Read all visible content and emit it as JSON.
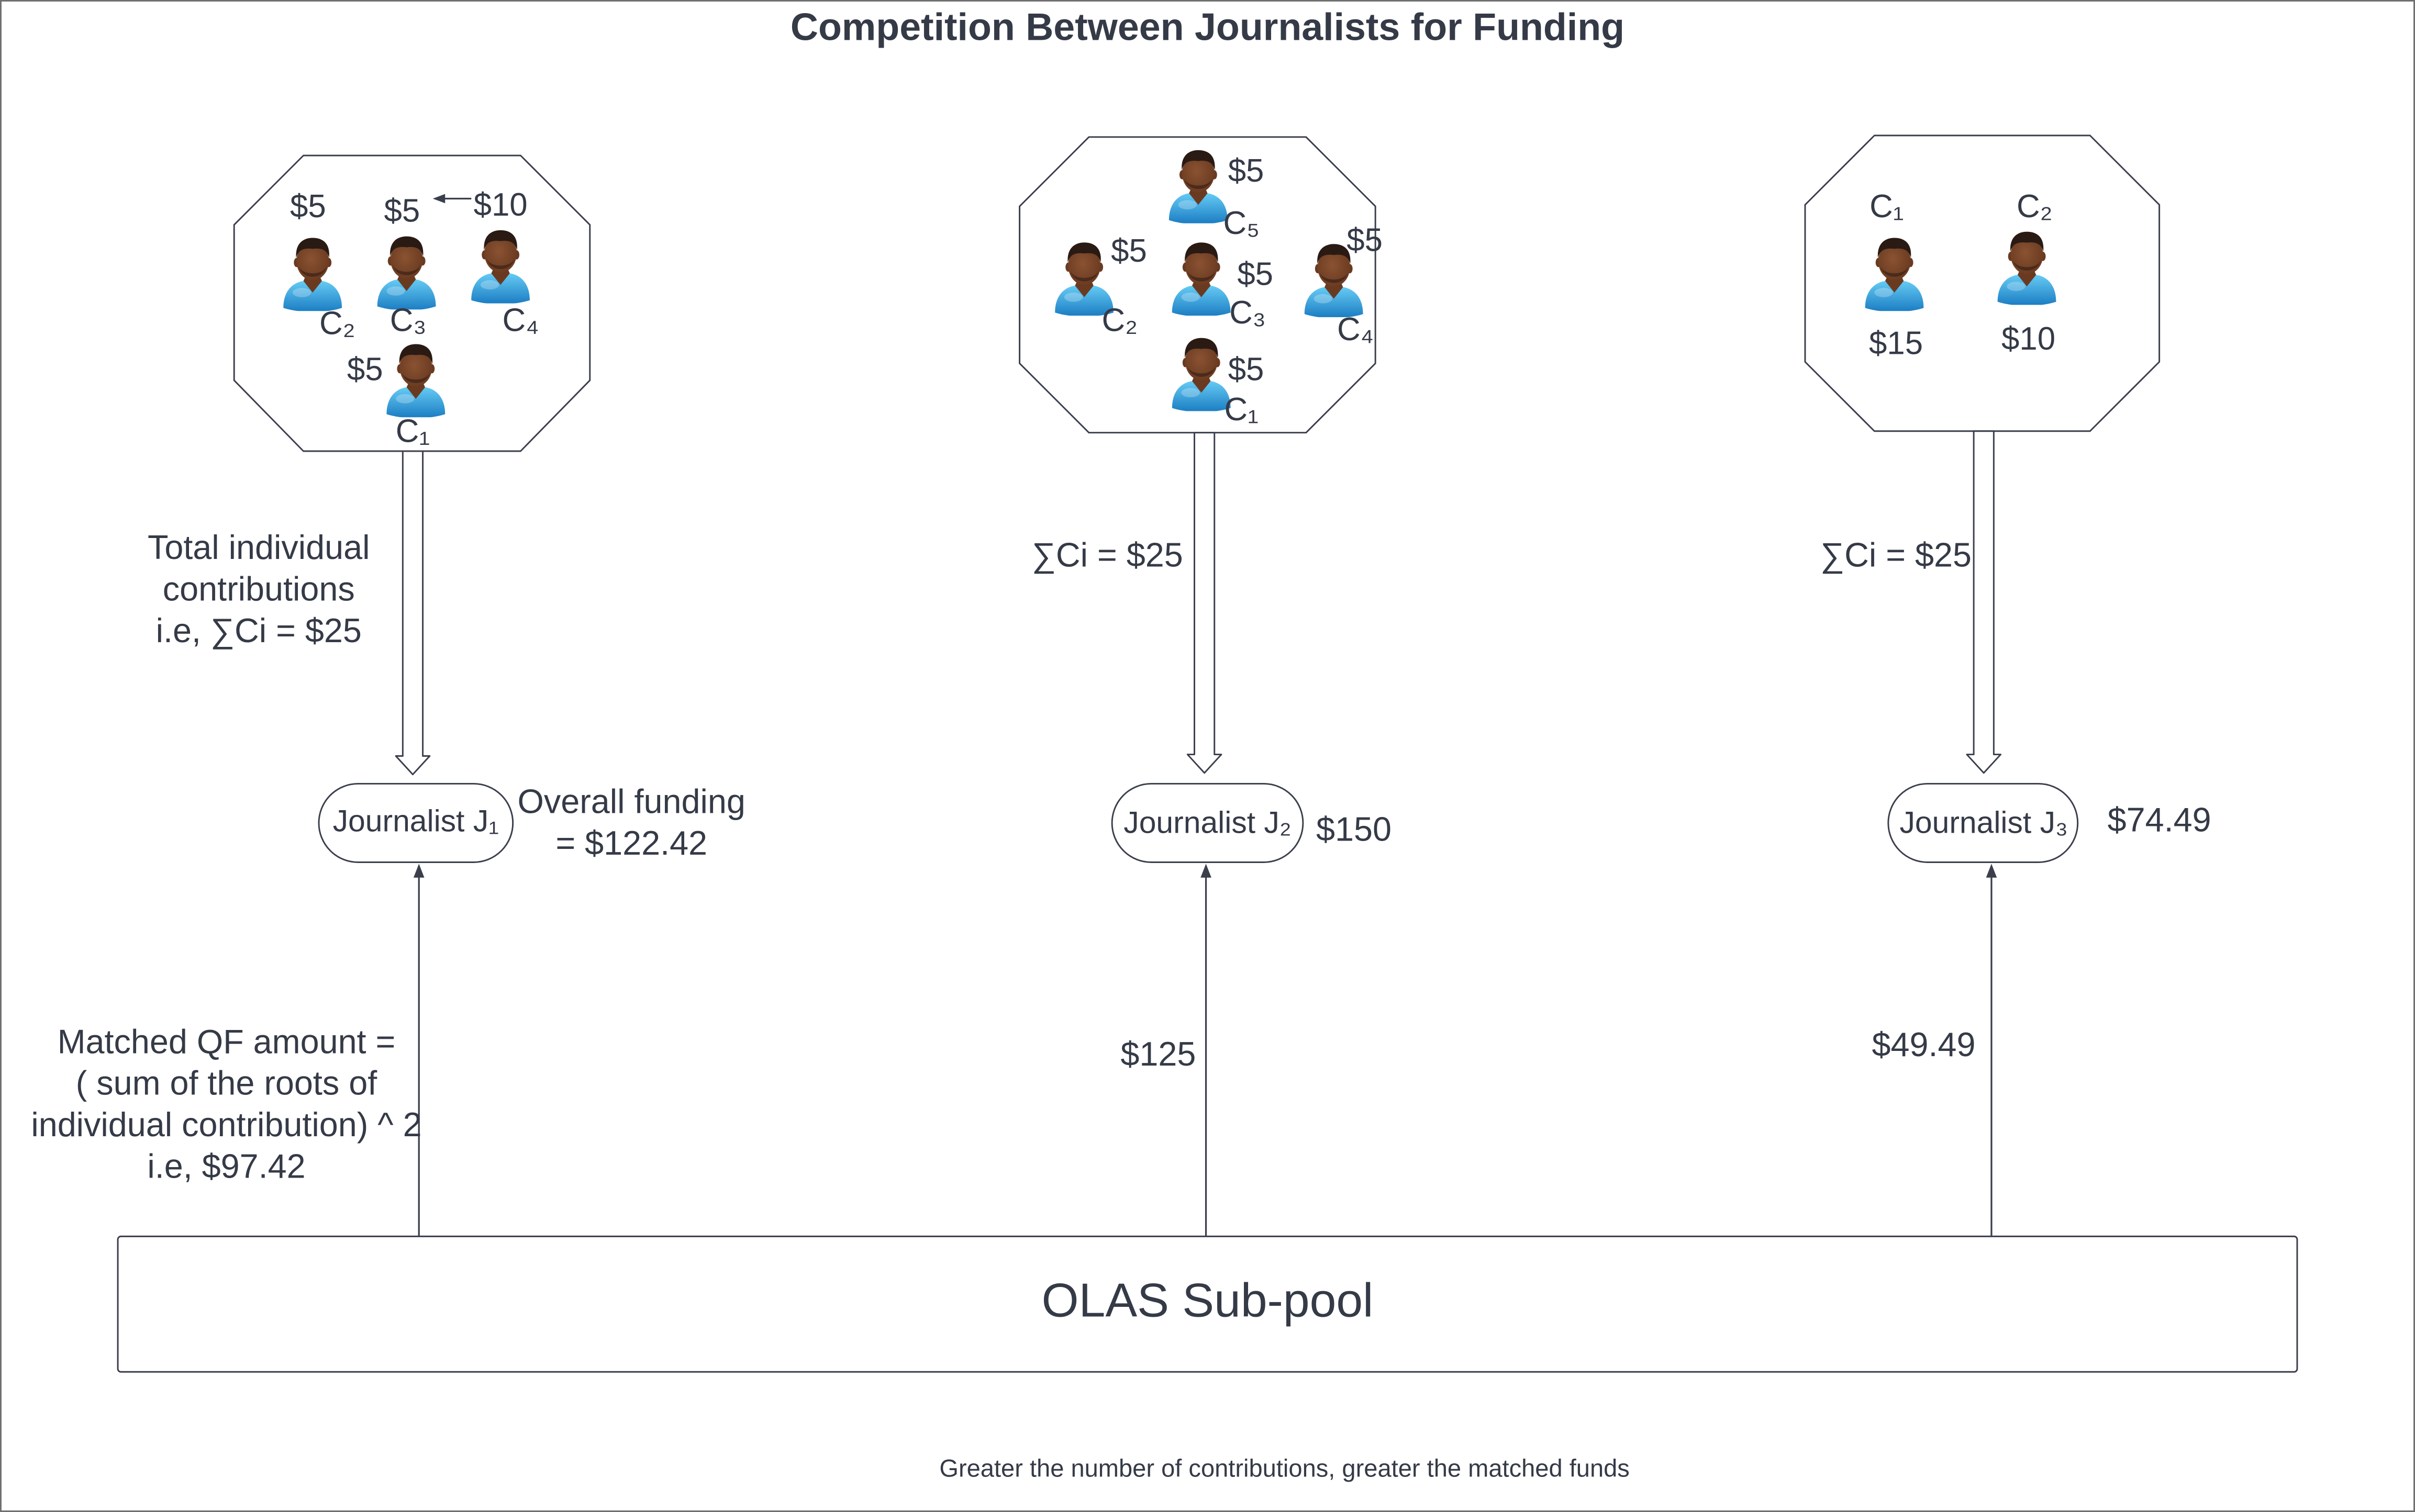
{
  "title": "Competition Between Journalists for Funding",
  "journalists": [
    {
      "name": "Journalist J₁",
      "contributors": [
        {
          "label": "C₁",
          "amount": "$5"
        },
        {
          "label": "C₂",
          "amount": "$5"
        },
        {
          "label": "C₃",
          "amount": "$5"
        },
        {
          "label": "C₄",
          "amount": "$10"
        }
      ],
      "contribution_text": [
        "Total individual",
        "contributions",
        "i.e, ∑Ci = $25"
      ],
      "overall_funding_text": [
        "Overall funding",
        "= $122.42"
      ],
      "matched_text": [
        "Matched QF amount =",
        "( sum of the roots of",
        "individual contribution) ^ 2",
        "i.e, $97.42"
      ]
    },
    {
      "name": "Journalist J₂",
      "contributors": [
        {
          "label": "C₁",
          "amount": "$5"
        },
        {
          "label": "C₂",
          "amount": "$5"
        },
        {
          "label": "C₃",
          "amount": "$5"
        },
        {
          "label": "C₄",
          "amount": "$5"
        },
        {
          "label": "C₅",
          "amount": "$5"
        }
      ],
      "contribution_text": [
        "∑Ci = $25"
      ],
      "overall_funding_text": [
        "$150"
      ],
      "matched_text": [
        "$125"
      ]
    },
    {
      "name": "Journalist J₃",
      "contributors": [
        {
          "label": "C₁",
          "amount": "$15"
        },
        {
          "label": "C₂",
          "amount": "$10"
        }
      ],
      "contribution_text": [
        "∑Ci = $25"
      ],
      "overall_funding_text": [
        "$74.49"
      ],
      "matched_text": [
        "$49.49"
      ]
    }
  ],
  "pool": {
    "label": "OLAS Sub-pool"
  },
  "footer": "Greater the number of contributions, greater the matched funds",
  "colors": {
    "text": "#353a47",
    "line": "#3b3f4c",
    "person_body": "#1a7cc2",
    "person_skin": "#8a5232",
    "person_hair": "#2a1a14"
  }
}
